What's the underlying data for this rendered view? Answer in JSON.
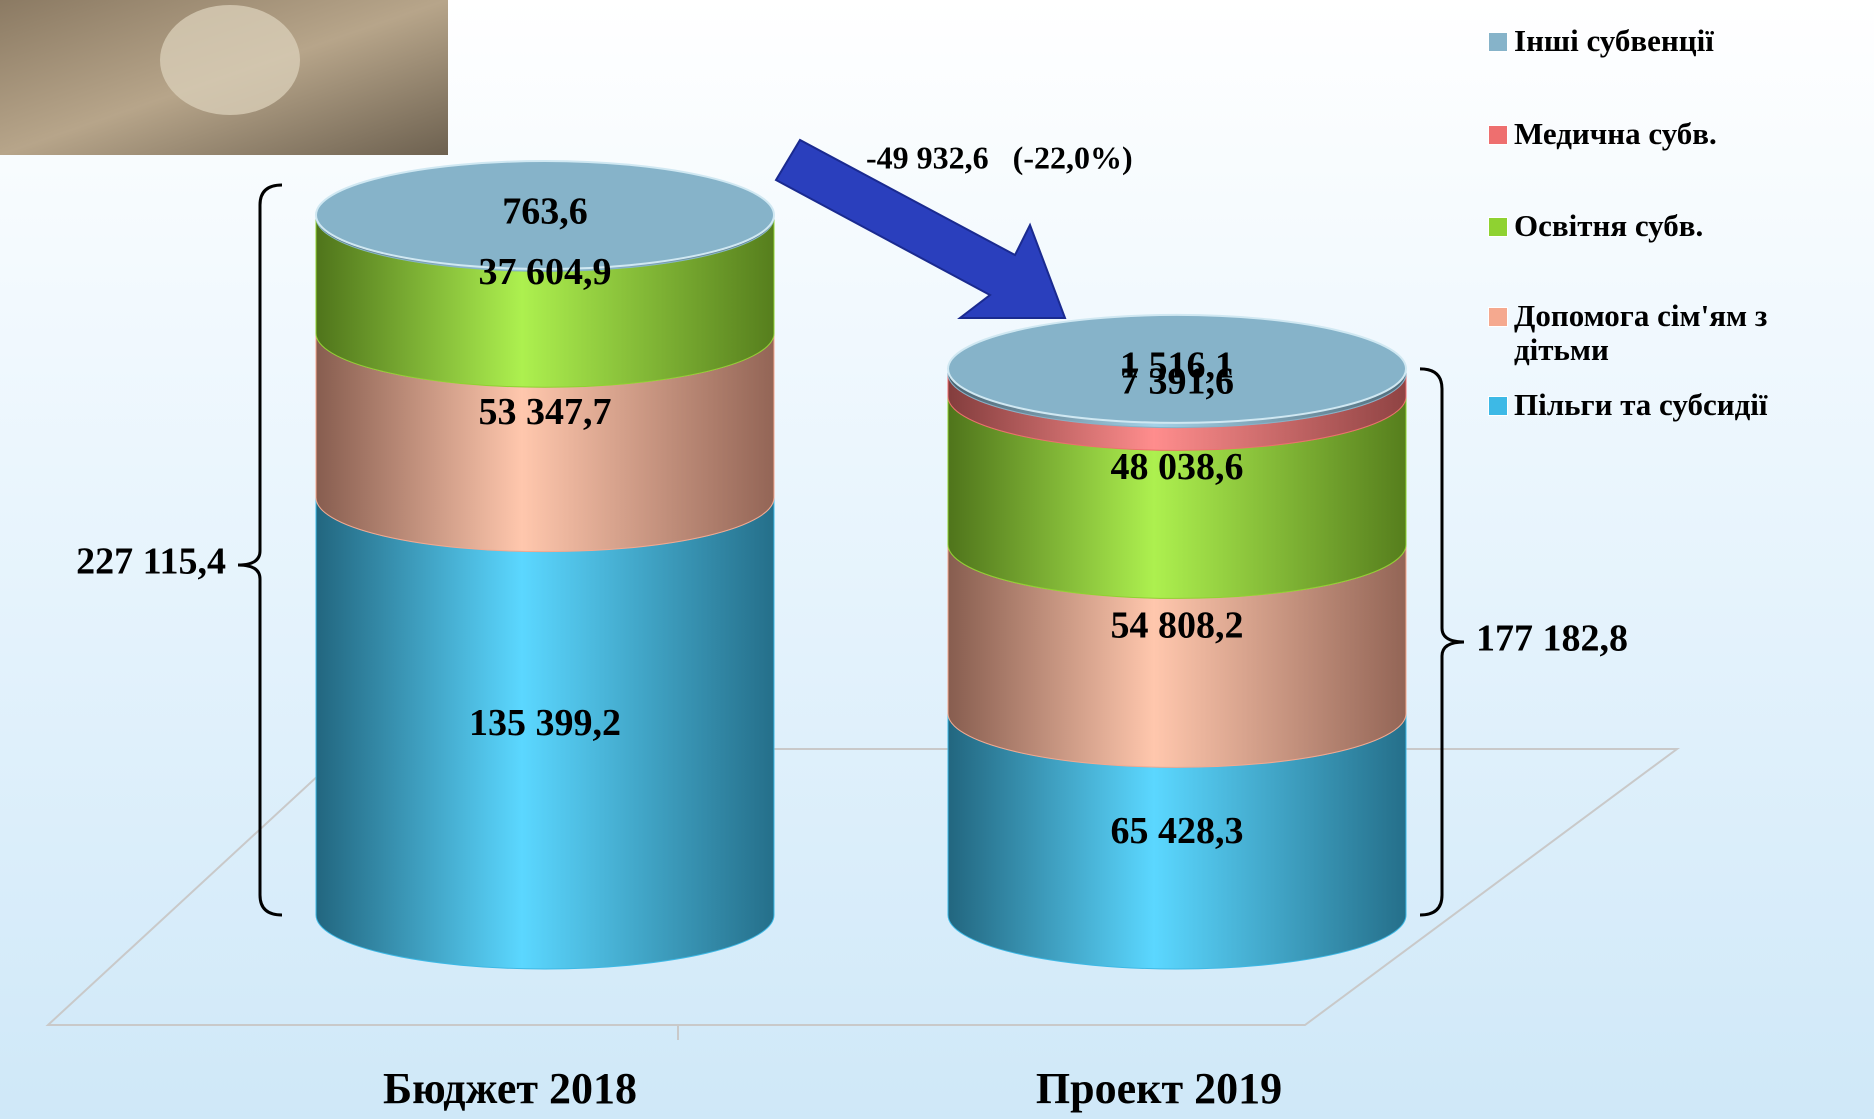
{
  "chart_data": {
    "type": "stacked-cylinder",
    "categories": [
      "Бюджет 2018",
      "Проект 2019"
    ],
    "series": [
      {
        "name": "Пільги та субсидії",
        "color": "#3db9e6",
        "values": [
          135399.2,
          65428.3
        ],
        "value_labels": [
          "135 399,2",
          "65 428,3"
        ]
      },
      {
        "name": "Допомога сім'ям з дітьми",
        "color": "#f5a98f",
        "values": [
          53347.7,
          54808.2
        ],
        "value_labels": [
          "53 347,7",
          "54 808,2"
        ]
      },
      {
        "name": "Освітня субв.",
        "color": "#8fd231",
        "values": [
          37604.9,
          48038.6
        ],
        "value_labels": [
          "37 604,9",
          "48 038,6"
        ]
      },
      {
        "name": "Медична субв.",
        "color": "#ee6f6f",
        "values": [
          null,
          7391.6
        ],
        "value_labels": [
          null,
          "7 391,6"
        ]
      },
      {
        "name": "Інші субвенції",
        "color": "#86b3c9",
        "values": [
          763.6,
          1516.1
        ],
        "value_labels": [
          "763,6",
          "1 516,1"
        ]
      }
    ],
    "totals": [
      227115.4,
      177182.8
    ],
    "total_labels": [
      "227 115,4",
      "177 182,8"
    ],
    "annotation": "-49 932,6   (-22,0%)",
    "legend": "right"
  }
}
